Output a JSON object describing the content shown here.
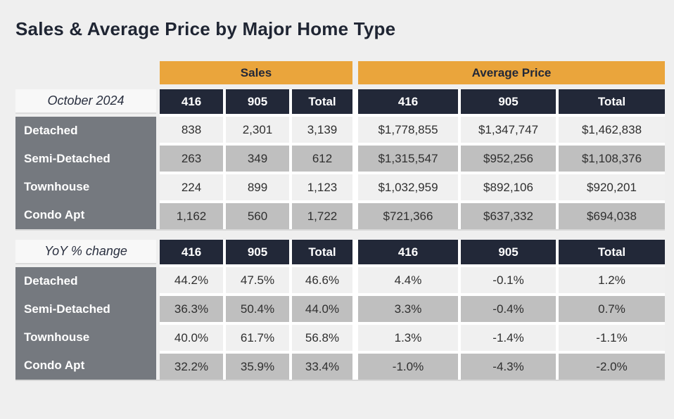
{
  "title": "Sales & Average Price by Major Home Type",
  "colors": {
    "accent_orange": "#EAA53C",
    "header_navy": "#222838",
    "row_label_gray": "#75797F",
    "row_light": "#F0F0F0",
    "row_dark": "#BFBFBF",
    "page_background": "#EFEFEF",
    "title_text": "#1F2533"
  },
  "chart_data": {
    "type": "table",
    "title": "Sales & Average Price by Major Home Type",
    "group_headers": [
      "Sales",
      "Average Price"
    ],
    "col_headers": [
      "416",
      "905",
      "Total"
    ],
    "sections": [
      {
        "label": "October 2024",
        "rows": [
          {
            "label": "Detached",
            "sales": [
              "838",
              "2,301",
              "3,139"
            ],
            "avg": [
              "$1,778,855",
              "$1,347,747",
              "$1,462,838"
            ]
          },
          {
            "label": "Semi-Detached",
            "sales": [
              "263",
              "349",
              "612"
            ],
            "avg": [
              "$1,315,547",
              "$952,256",
              "$1,108,376"
            ]
          },
          {
            "label": "Townhouse",
            "sales": [
              "224",
              "899",
              "1,123"
            ],
            "avg": [
              "$1,032,959",
              "$892,106",
              "$920,201"
            ]
          },
          {
            "label": "Condo Apt",
            "sales": [
              "1,162",
              "560",
              "1,722"
            ],
            "avg": [
              "$721,366",
              "$637,332",
              "$694,038"
            ]
          }
        ]
      },
      {
        "label": "YoY % change",
        "rows": [
          {
            "label": "Detached",
            "sales": [
              "44.2%",
              "47.5%",
              "46.6%"
            ],
            "avg": [
              "4.4%",
              "-0.1%",
              "1.2%"
            ]
          },
          {
            "label": "Semi-Detached",
            "sales": [
              "36.3%",
              "50.4%",
              "44.0%"
            ],
            "avg": [
              "3.3%",
              "-0.4%",
              "0.7%"
            ]
          },
          {
            "label": "Townhouse",
            "sales": [
              "40.0%",
              "61.7%",
              "56.8%"
            ],
            "avg": [
              "1.3%",
              "-1.4%",
              "-1.1%"
            ]
          },
          {
            "label": "Condo Apt",
            "sales": [
              "32.2%",
              "35.9%",
              "33.4%"
            ],
            "avg": [
              "-1.0%",
              "-4.3%",
              "-2.0%"
            ]
          }
        ]
      }
    ]
  }
}
